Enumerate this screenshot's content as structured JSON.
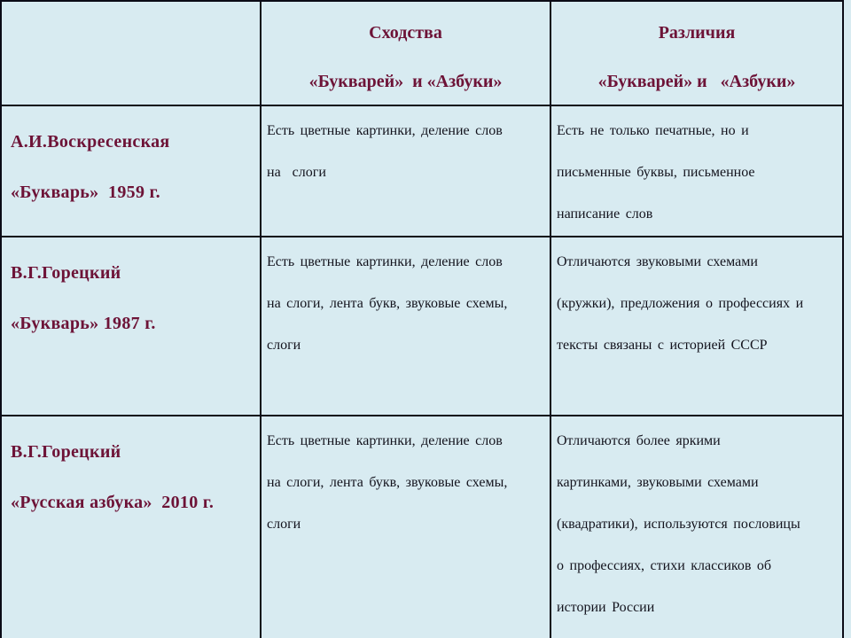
{
  "colors": {
    "background": "#d8ebf1",
    "border": "#0b0b16",
    "accent_text": "#6d1337",
    "body_text": "#13131d"
  },
  "table": {
    "header": {
      "books_col": "",
      "similarities": "Сходства\n«Букварей»  и «Азбуки»",
      "differences": "Различия\n«Букварей» и   «Азбуки»"
    },
    "rows": [
      {
        "book": "А.И.Воскресенская\n«Букварь»  1959 г.",
        "similarities": "Есть цветные картинки, деление слов\nна  слоги",
        "differences": "Есть не только печатные, но и\nписьменные буквы, письменное\nнаписание слов"
      },
      {
        "book": "В.Г.Горецкий\n«Букварь» 1987 г.",
        "similarities": "Есть цветные картинки, деление слов\nна слоги, лента букв, звуковые схемы,\nслоги",
        "differences": "Отличаются звуковыми схемами\n(кружки), предложения о профессиях и\nтексты связаны с историей СССР"
      },
      {
        "book": "В.Г.Горецкий\n«Русская азбука»  2010 г.",
        "similarities": "Есть цветные картинки, деление слов\nна слоги, лента букв, звуковые схемы,\nслоги",
        "differences": "Отличаются более яркими\nкартинками, звуковыми схемами\n(квадратики), используются пословицы\nо профессиях, стихи классиков об\nистории России"
      }
    ]
  }
}
